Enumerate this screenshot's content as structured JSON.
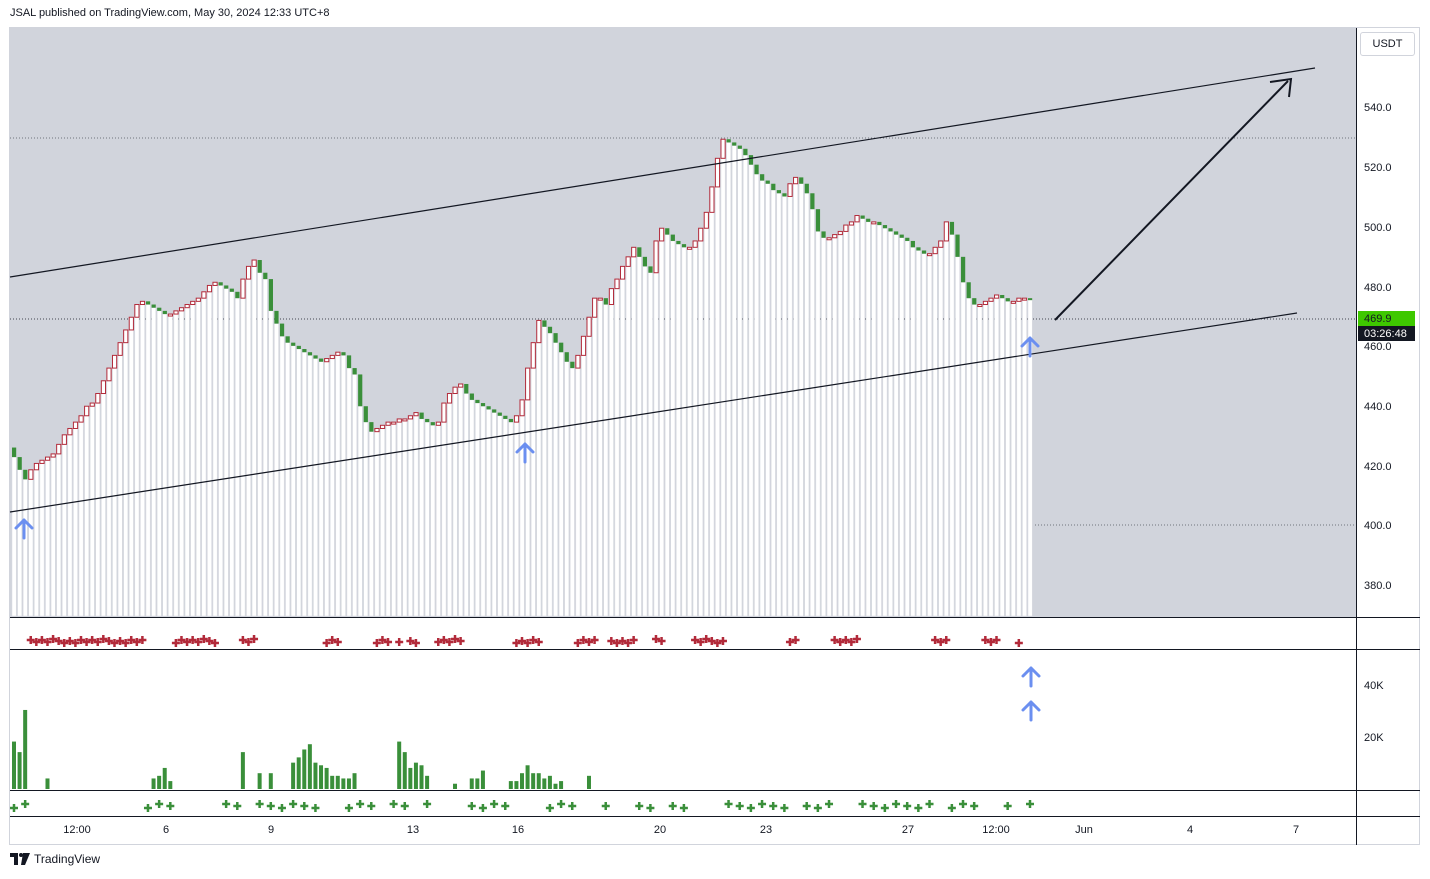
{
  "header": {
    "attribution": "JSAL published on TradingView.com, May 30, 2024 12:33 UTC+8"
  },
  "footer": {
    "brand": "TradingView"
  },
  "price_axis": {
    "currency": "USDT",
    "ticks": [
      "540.0",
      "520.0",
      "500.0",
      "480.0",
      "460.0",
      "440.0",
      "420.0",
      "400.0",
      "380.0"
    ],
    "current_price": "469.9",
    "countdown": "03:26:48"
  },
  "volume_axis": {
    "ticks": [
      "40K",
      "20K"
    ]
  },
  "time_axis": {
    "ticks": [
      "12:00",
      "6",
      "9",
      "13",
      "16",
      "20",
      "23",
      "27",
      "12:00",
      "Jun",
      "4",
      "7"
    ]
  },
  "colors": {
    "up": "#3a8f3a",
    "down": "#b22a3a",
    "bg": "#d1d4dc",
    "accent_price": "#3ec800",
    "arrow": "#6b8ff0"
  },
  "chart_data": [
    {
      "type": "candlestick",
      "price_range": [
        370,
        555
      ],
      "close_series": [
        420,
        416,
        413,
        416,
        418,
        419,
        420,
        421,
        424,
        427,
        429,
        431,
        433,
        436,
        437,
        440,
        444,
        448,
        452,
        456,
        460,
        464,
        468,
        469,
        468,
        467,
        466,
        465,
        465,
        466,
        467,
        468,
        469,
        470,
        472,
        474,
        475,
        474,
        473,
        472,
        470,
        476,
        480,
        482,
        478,
        476,
        466,
        462,
        458,
        456,
        455,
        454,
        453,
        452,
        451,
        450,
        451,
        452,
        453,
        452,
        448,
        446,
        436,
        431,
        428,
        429,
        430,
        431,
        431,
        432,
        432,
        433,
        434,
        432,
        431,
        430,
        431,
        437,
        440,
        442,
        443,
        440,
        438,
        437,
        436,
        435,
        434,
        433,
        432,
        431,
        433,
        438,
        448,
        456,
        463,
        461,
        459,
        456,
        453,
        450,
        448,
        452,
        458,
        464,
        470,
        470,
        468,
        473,
        476,
        480,
        483,
        486,
        483,
        480,
        478,
        488,
        492,
        490,
        488,
        487,
        486,
        486,
        488,
        492,
        497,
        505,
        514,
        520,
        519,
        518,
        517,
        515,
        512,
        509,
        507,
        506,
        504,
        503,
        502,
        506,
        508,
        506,
        503,
        498,
        491,
        489,
        489,
        490,
        491,
        493,
        494,
        496,
        495,
        494,
        494,
        493,
        492,
        491,
        490,
        489,
        488,
        486,
        485,
        484,
        484,
        486,
        488,
        494,
        490,
        483,
        475,
        470,
        468,
        468,
        469,
        470,
        471,
        470,
        469,
        469,
        470,
        470,
        469.9
      ],
      "annotations": [
        "ascending channel upper line",
        "ascending channel lower line",
        "projected breakout arrow",
        "support bounce markers"
      ]
    },
    {
      "type": "bar",
      "name": "volume",
      "range": [
        0,
        52000
      ],
      "values": [
        18000,
        14000,
        30000,
        0,
        0,
        0,
        4000,
        0,
        0,
        0,
        0,
        0,
        0,
        0,
        0,
        0,
        0,
        0,
        0,
        0,
        0,
        0,
        0,
        0,
        0,
        4000,
        5000,
        8000,
        3000,
        0,
        0,
        0,
        0,
        0,
        0,
        0,
        0,
        0,
        0,
        0,
        0,
        14000,
        0,
        0,
        6000,
        0,
        6000,
        0,
        0,
        0,
        10000,
        12000,
        15000,
        17000,
        10000,
        9000,
        8000,
        5000,
        5000,
        4000,
        4000,
        6000,
        0,
        0,
        0,
        0,
        0,
        0,
        0,
        18000,
        14000,
        8000,
        10000,
        9000,
        5000,
        0,
        0,
        0,
        0,
        2000,
        0,
        0,
        4000,
        4000,
        7000,
        0,
        0,
        0,
        0,
        3000,
        3000,
        6000,
        9000,
        6000,
        6000,
        4000,
        5000,
        2000,
        3000,
        0,
        0,
        0,
        0,
        5000,
        0,
        0,
        0,
        0,
        0,
        0,
        0,
        0,
        0,
        0,
        0,
        0,
        0,
        0,
        0,
        0,
        0,
        0,
        0,
        0,
        0,
        0,
        0,
        0,
        0,
        0,
        0,
        0,
        0,
        0,
        0,
        0,
        0,
        0,
        0,
        0,
        0,
        0,
        0,
        0,
        0,
        0,
        0,
        0,
        0,
        0,
        0,
        0,
        0,
        0,
        0,
        0,
        0,
        0,
        0,
        0,
        0,
        0,
        0,
        0,
        0,
        0,
        0,
        0,
        0,
        0,
        0,
        0,
        0,
        0,
        0
      ]
    }
  ]
}
